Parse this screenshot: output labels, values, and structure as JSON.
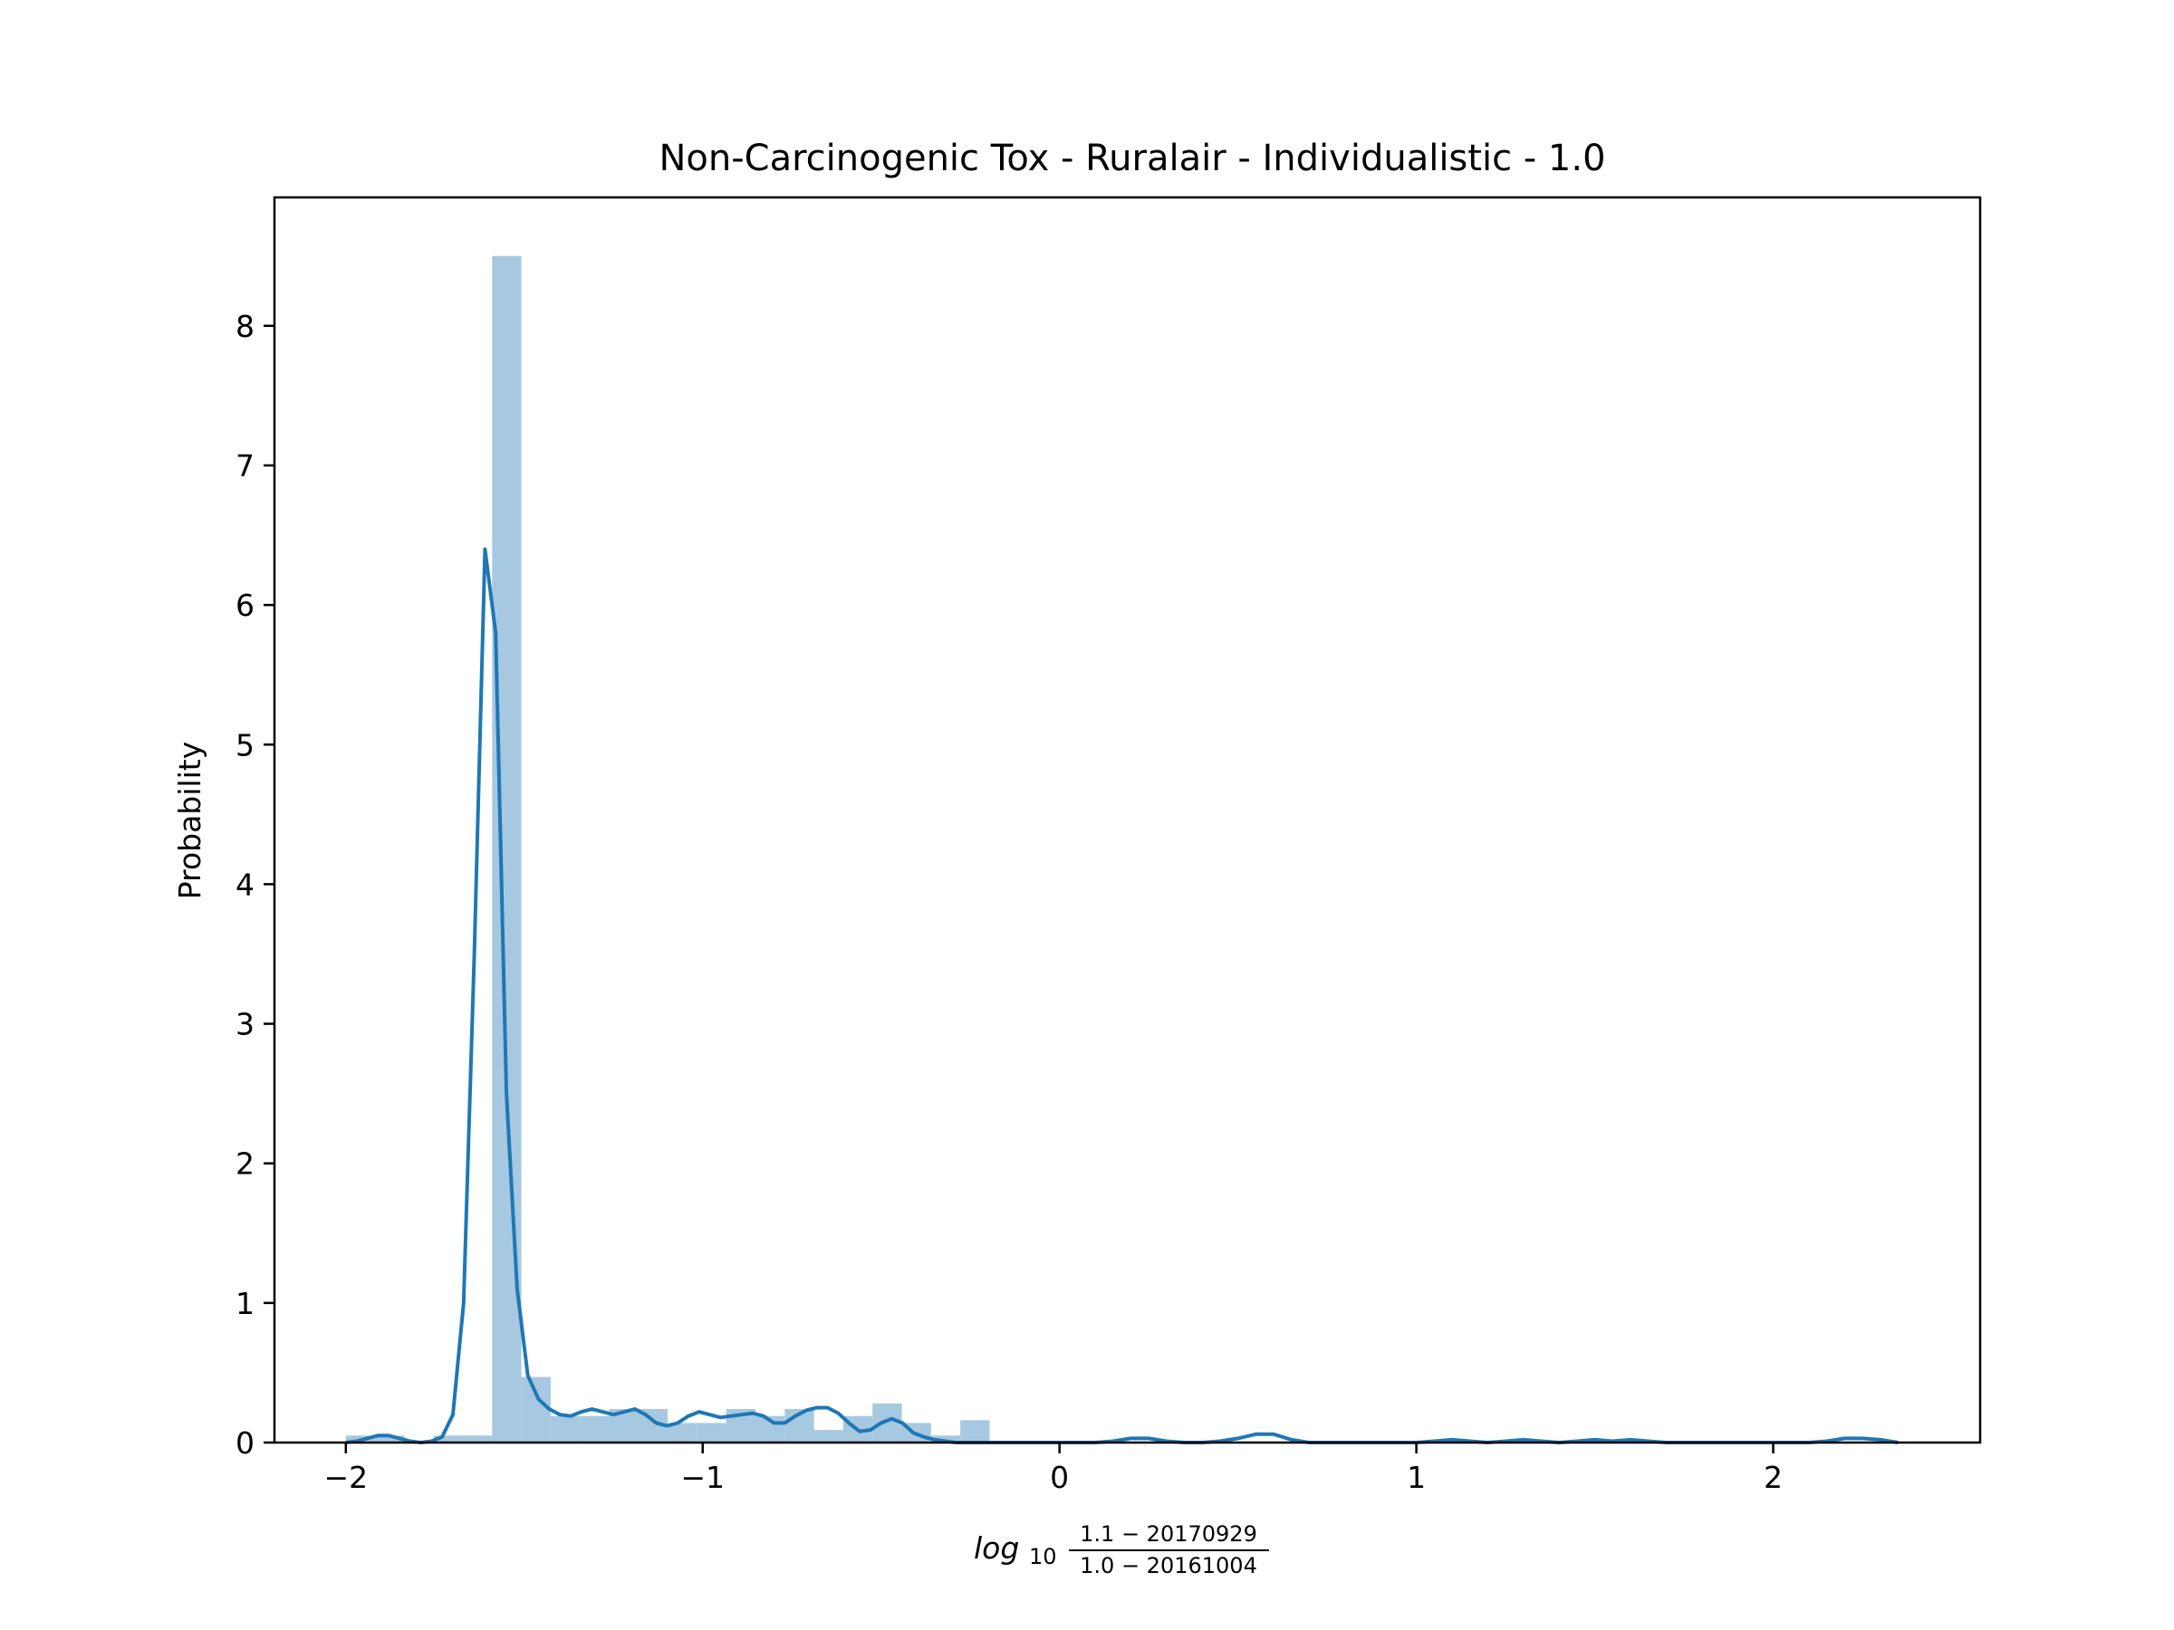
{
  "chart_data": {
    "type": "histogram+kde",
    "title": "Non-Carcinogenic Tox - Ruralair - Individualistic - 1.0",
    "ylabel": "Probability",
    "xlabel": {
      "prefix": "log",
      "subscript": "10",
      "numerator": "1.1 − 20170929",
      "denominator": "1.0 − 20161004"
    },
    "xlim": [
      -2.2,
      2.58
    ],
    "ylim": [
      0,
      8.92
    ],
    "xticks": [
      {
        "value": -2,
        "label": "−2"
      },
      {
        "value": -1,
        "label": "−1"
      },
      {
        "value": 0,
        "label": "0"
      },
      {
        "value": 1,
        "label": "1"
      },
      {
        "value": 2,
        "label": "2"
      }
    ],
    "yticks": [
      {
        "value": 0,
        "label": "0"
      },
      {
        "value": 1,
        "label": "1"
      },
      {
        "value": 2,
        "label": "2"
      },
      {
        "value": 3,
        "label": "3"
      },
      {
        "value": 4,
        "label": "4"
      },
      {
        "value": 5,
        "label": "5"
      },
      {
        "value": 6,
        "label": "6"
      },
      {
        "value": 7,
        "label": "7"
      },
      {
        "value": 8,
        "label": "8"
      }
    ],
    "bar_color": "#a6c8e0",
    "line_color": "#1f77b4",
    "bin_edges": [
      -2.0,
      -1.918,
      -1.836,
      -1.754,
      -1.672,
      -1.59,
      -1.508,
      -1.426,
      -1.344,
      -1.262,
      -1.18,
      -1.098,
      -1.016,
      -0.934,
      -0.852,
      -0.77,
      -0.688,
      -0.606,
      -0.524,
      -0.442,
      -0.36,
      -0.278,
      -0.196
    ],
    "bin_values": [
      0.05,
      0.05,
      0.0,
      0.05,
      0.05,
      8.5,
      0.47,
      0.19,
      0.19,
      0.24,
      0.24,
      0.14,
      0.14,
      0.24,
      0.19,
      0.24,
      0.09,
      0.19,
      0.28,
      0.14,
      0.05,
      0.16
    ],
    "kde_x": [
      -2.0,
      -1.97,
      -1.94,
      -1.91,
      -1.88,
      -1.85,
      -1.82,
      -1.79,
      -1.76,
      -1.73,
      -1.7,
      -1.67,
      -1.64,
      -1.61,
      -1.58,
      -1.55,
      -1.52,
      -1.49,
      -1.46,
      -1.43,
      -1.4,
      -1.37,
      -1.34,
      -1.31,
      -1.28,
      -1.25,
      -1.22,
      -1.19,
      -1.16,
      -1.13,
      -1.1,
      -1.07,
      -1.04,
      -1.01,
      -0.98,
      -0.95,
      -0.92,
      -0.89,
      -0.86,
      -0.83,
      -0.8,
      -0.77,
      -0.74,
      -0.71,
      -0.68,
      -0.65,
      -0.62,
      -0.59,
      -0.56,
      -0.53,
      -0.5,
      -0.47,
      -0.44,
      -0.41,
      -0.38,
      -0.35,
      -0.32,
      -0.29,
      -0.26,
      -0.23,
      -0.2,
      -0.17,
      -0.14,
      -0.11,
      -0.08,
      -0.05,
      -0.02,
      0.0,
      0.05,
      0.1,
      0.15,
      0.2,
      0.25,
      0.3,
      0.35,
      0.4,
      0.45,
      0.5,
      0.55,
      0.6,
      0.65,
      0.7,
      0.75,
      0.8,
      0.9,
      1.0,
      1.05,
      1.1,
      1.15,
      1.2,
      1.25,
      1.3,
      1.35,
      1.4,
      1.45,
      1.5,
      1.55,
      1.6,
      1.65,
      1.7,
      1.8,
      1.9,
      2.0,
      2.1,
      2.15,
      2.2,
      2.25,
      2.3,
      2.35
    ],
    "kde_y": [
      0.0,
      0.01,
      0.03,
      0.05,
      0.05,
      0.03,
      0.01,
      0.0,
      0.01,
      0.04,
      0.2,
      1.0,
      3.5,
      6.4,
      5.8,
      2.5,
      1.1,
      0.48,
      0.31,
      0.24,
      0.2,
      0.19,
      0.22,
      0.24,
      0.22,
      0.2,
      0.22,
      0.24,
      0.2,
      0.14,
      0.12,
      0.14,
      0.19,
      0.22,
      0.2,
      0.18,
      0.19,
      0.2,
      0.21,
      0.19,
      0.14,
      0.14,
      0.19,
      0.23,
      0.25,
      0.25,
      0.21,
      0.14,
      0.08,
      0.09,
      0.14,
      0.17,
      0.14,
      0.07,
      0.04,
      0.02,
      0.01,
      0.0,
      0.0,
      0.0,
      0.0,
      0.0,
      0.0,
      0.0,
      0.0,
      0.0,
      0.0,
      0.0,
      0.0,
      0.0,
      0.01,
      0.03,
      0.03,
      0.01,
      0.0,
      0.0,
      0.01,
      0.03,
      0.06,
      0.06,
      0.02,
      0.0,
      0.0,
      0.0,
      0.0,
      0.0,
      0.01,
      0.02,
      0.01,
      0.0,
      0.01,
      0.02,
      0.01,
      0.0,
      0.01,
      0.02,
      0.01,
      0.02,
      0.01,
      0.0,
      0.0,
      0.0,
      0.0,
      0.0,
      0.01,
      0.03,
      0.03,
      0.02,
      0.0
    ]
  }
}
